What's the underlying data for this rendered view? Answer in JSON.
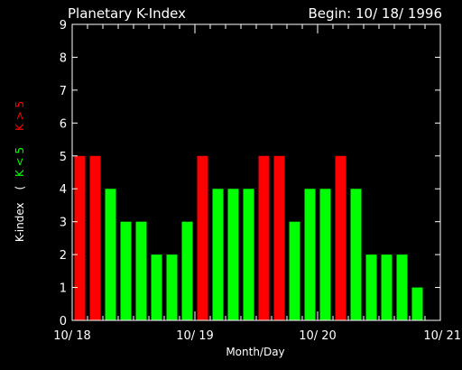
{
  "chart_data": {
    "type": "bar",
    "title": "Planetary K-Index",
    "subtitle": "Begin: 10/ 18/ 1996",
    "xlabel": "Month/Day",
    "ylabel": "K-index",
    "legend": {
      "open": "(",
      "low": "K < 5",
      "high": "K > 5"
    },
    "ylim": [
      0,
      9
    ],
    "yticks": [
      "0",
      "1",
      "2",
      "3",
      "4",
      "5",
      "6",
      "7",
      "8",
      "9"
    ],
    "xlim": [
      0,
      24
    ],
    "xticks": [
      {
        "x": 0,
        "label": "10/ 18"
      },
      {
        "x": 8,
        "label": "10/ 19"
      },
      {
        "x": 16,
        "label": "10/ 20"
      },
      {
        "x": 24,
        "label": "10/ 21"
      }
    ],
    "values": [
      5,
      5,
      4,
      3,
      3,
      2,
      2,
      3,
      5,
      4,
      4,
      4,
      5,
      5,
      3,
      4,
      4,
      5,
      4,
      2,
      2,
      2,
      1
    ],
    "colors": {
      "low": "#00ff00",
      "high": "#ff0000",
      "background": "#000000",
      "axis": "#ffffff"
    },
    "threshold": 5
  }
}
